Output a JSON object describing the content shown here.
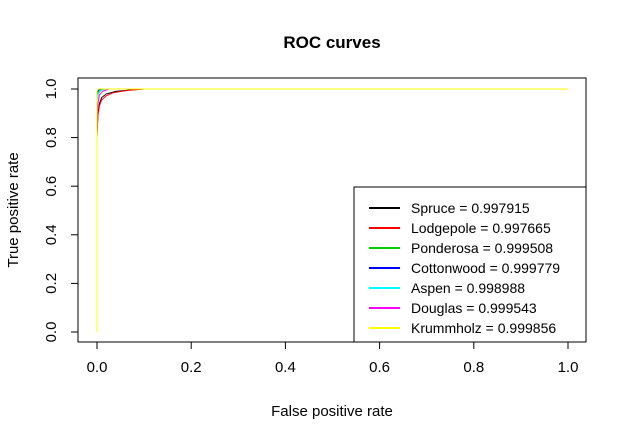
{
  "chart_data": {
    "type": "line",
    "title": "ROC curves",
    "xlabel": "False positive rate",
    "ylabel": "True positive rate",
    "xlim": [
      0,
      1
    ],
    "ylim": [
      0,
      1
    ],
    "x_ticks": [
      "0.0",
      "0.2",
      "0.4",
      "0.6",
      "0.8",
      "1.0"
    ],
    "y_ticks": [
      "0.0",
      "0.2",
      "0.4",
      "0.6",
      "0.8",
      "1.0"
    ],
    "grid": false,
    "legend_position": "bottom-right",
    "series": [
      {
        "name": "Spruce = 0.997915",
        "color": "#000000",
        "points": [
          [
            0,
            0
          ],
          [
            0,
            0.8
          ],
          [
            0.002,
            0.9
          ],
          [
            0.005,
            0.94
          ],
          [
            0.01,
            0.965
          ],
          [
            0.02,
            0.98
          ],
          [
            0.04,
            0.99
          ],
          [
            0.07,
            0.996
          ],
          [
            0.1,
            1
          ],
          [
            1,
            1
          ]
        ]
      },
      {
        "name": "Lodgepole = 0.997665",
        "color": "#ff0000",
        "points": [
          [
            0,
            0
          ],
          [
            0,
            0.81
          ],
          [
            0.002,
            0.89
          ],
          [
            0.005,
            0.93
          ],
          [
            0.01,
            0.955
          ],
          [
            0.02,
            0.972
          ],
          [
            0.035,
            0.985
          ],
          [
            0.06,
            0.993
          ],
          [
            0.1,
            1
          ],
          [
            1,
            1
          ]
        ]
      },
      {
        "name": "Ponderosa = 0.999508",
        "color": "#00cd00",
        "points": [
          [
            0,
            0
          ],
          [
            0,
            0.96
          ],
          [
            0.002,
            0.985
          ],
          [
            0.006,
            0.995
          ],
          [
            0.015,
            1
          ],
          [
            1,
            1
          ]
        ]
      },
      {
        "name": "Cottonwood = 0.999779",
        "color": "#0000ff",
        "points": [
          [
            0,
            0
          ],
          [
            0,
            0.985
          ],
          [
            0.004,
            0.997
          ],
          [
            0.01,
            1
          ],
          [
            1,
            1
          ]
        ]
      },
      {
        "name": "Aspen = 0.998988",
        "color": "#00ffff",
        "points": [
          [
            0,
            0
          ],
          [
            0,
            0.95
          ],
          [
            0.003,
            0.98
          ],
          [
            0.008,
            0.993
          ],
          [
            0.02,
            1
          ],
          [
            1,
            1
          ]
        ]
      },
      {
        "name": "Douglas = 0.999543",
        "color": "#ff00ff",
        "points": [
          [
            0,
            0
          ],
          [
            0,
            0.88
          ],
          [
            0.002,
            0.94
          ],
          [
            0.005,
            0.975
          ],
          [
            0.012,
            0.99
          ],
          [
            0.025,
            1
          ],
          [
            1,
            1
          ]
        ]
      },
      {
        "name": "Krummholz = 0.999856",
        "color": "#ffff00",
        "points": [
          [
            0,
            0
          ],
          [
            0,
            0.99
          ],
          [
            0.003,
            1
          ],
          [
            1,
            1
          ]
        ]
      }
    ]
  }
}
